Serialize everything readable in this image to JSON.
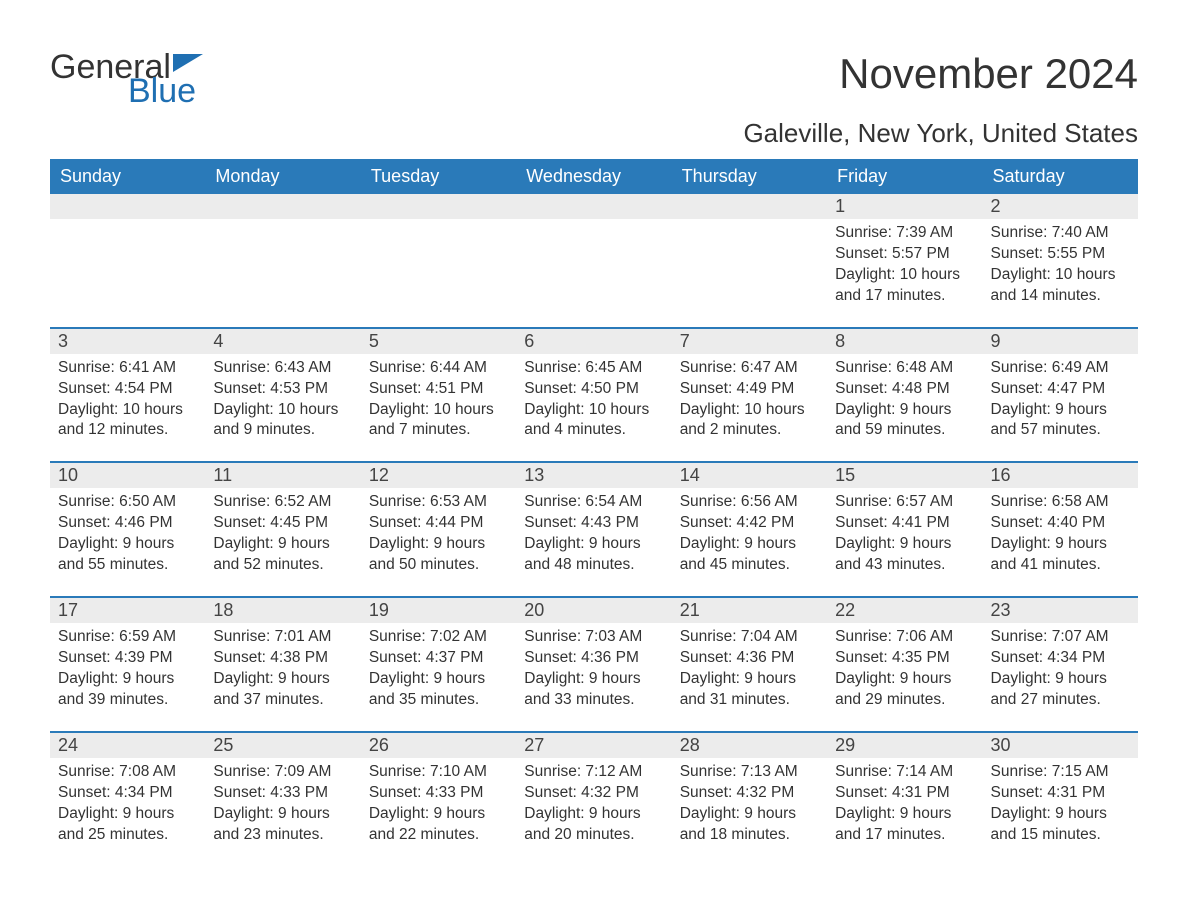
{
  "logo": {
    "word1": "General",
    "word2": "Blue",
    "icon_color": "#1f6fb2"
  },
  "colors": {
    "header_bg": "#2a7ab9",
    "header_text": "#ffffff",
    "daybar_bg": "#ececec",
    "border": "#2a7ab9",
    "text": "#333333",
    "logo_blue": "#1f6fb2",
    "page_bg": "#ffffff"
  },
  "title": "November 2024",
  "location": "Galeville, New York, United States",
  "weekdays": [
    "Sunday",
    "Monday",
    "Tuesday",
    "Wednesday",
    "Thursday",
    "Friday",
    "Saturday"
  ],
  "weeks": [
    [
      {
        "day": "",
        "sunrise": "",
        "sunset": "",
        "daylight": ""
      },
      {
        "day": "",
        "sunrise": "",
        "sunset": "",
        "daylight": ""
      },
      {
        "day": "",
        "sunrise": "",
        "sunset": "",
        "daylight": ""
      },
      {
        "day": "",
        "sunrise": "",
        "sunset": "",
        "daylight": ""
      },
      {
        "day": "",
        "sunrise": "",
        "sunset": "",
        "daylight": ""
      },
      {
        "day": "1",
        "sunrise": "Sunrise: 7:39 AM",
        "sunset": "Sunset: 5:57 PM",
        "daylight": "Daylight: 10 hours and 17 minutes."
      },
      {
        "day": "2",
        "sunrise": "Sunrise: 7:40 AM",
        "sunset": "Sunset: 5:55 PM",
        "daylight": "Daylight: 10 hours and 14 minutes."
      }
    ],
    [
      {
        "day": "3",
        "sunrise": "Sunrise: 6:41 AM",
        "sunset": "Sunset: 4:54 PM",
        "daylight": "Daylight: 10 hours and 12 minutes."
      },
      {
        "day": "4",
        "sunrise": "Sunrise: 6:43 AM",
        "sunset": "Sunset: 4:53 PM",
        "daylight": "Daylight: 10 hours and 9 minutes."
      },
      {
        "day": "5",
        "sunrise": "Sunrise: 6:44 AM",
        "sunset": "Sunset: 4:51 PM",
        "daylight": "Daylight: 10 hours and 7 minutes."
      },
      {
        "day": "6",
        "sunrise": "Sunrise: 6:45 AM",
        "sunset": "Sunset: 4:50 PM",
        "daylight": "Daylight: 10 hours and 4 minutes."
      },
      {
        "day": "7",
        "sunrise": "Sunrise: 6:47 AM",
        "sunset": "Sunset: 4:49 PM",
        "daylight": "Daylight: 10 hours and 2 minutes."
      },
      {
        "day": "8",
        "sunrise": "Sunrise: 6:48 AM",
        "sunset": "Sunset: 4:48 PM",
        "daylight": "Daylight: 9 hours and 59 minutes."
      },
      {
        "day": "9",
        "sunrise": "Sunrise: 6:49 AM",
        "sunset": "Sunset: 4:47 PM",
        "daylight": "Daylight: 9 hours and 57 minutes."
      }
    ],
    [
      {
        "day": "10",
        "sunrise": "Sunrise: 6:50 AM",
        "sunset": "Sunset: 4:46 PM",
        "daylight": "Daylight: 9 hours and 55 minutes."
      },
      {
        "day": "11",
        "sunrise": "Sunrise: 6:52 AM",
        "sunset": "Sunset: 4:45 PM",
        "daylight": "Daylight: 9 hours and 52 minutes."
      },
      {
        "day": "12",
        "sunrise": "Sunrise: 6:53 AM",
        "sunset": "Sunset: 4:44 PM",
        "daylight": "Daylight: 9 hours and 50 minutes."
      },
      {
        "day": "13",
        "sunrise": "Sunrise: 6:54 AM",
        "sunset": "Sunset: 4:43 PM",
        "daylight": "Daylight: 9 hours and 48 minutes."
      },
      {
        "day": "14",
        "sunrise": "Sunrise: 6:56 AM",
        "sunset": "Sunset: 4:42 PM",
        "daylight": "Daylight: 9 hours and 45 minutes."
      },
      {
        "day": "15",
        "sunrise": "Sunrise: 6:57 AM",
        "sunset": "Sunset: 4:41 PM",
        "daylight": "Daylight: 9 hours and 43 minutes."
      },
      {
        "day": "16",
        "sunrise": "Sunrise: 6:58 AM",
        "sunset": "Sunset: 4:40 PM",
        "daylight": "Daylight: 9 hours and 41 minutes."
      }
    ],
    [
      {
        "day": "17",
        "sunrise": "Sunrise: 6:59 AM",
        "sunset": "Sunset: 4:39 PM",
        "daylight": "Daylight: 9 hours and 39 minutes."
      },
      {
        "day": "18",
        "sunrise": "Sunrise: 7:01 AM",
        "sunset": "Sunset: 4:38 PM",
        "daylight": "Daylight: 9 hours and 37 minutes."
      },
      {
        "day": "19",
        "sunrise": "Sunrise: 7:02 AM",
        "sunset": "Sunset: 4:37 PM",
        "daylight": "Daylight: 9 hours and 35 minutes."
      },
      {
        "day": "20",
        "sunrise": "Sunrise: 7:03 AM",
        "sunset": "Sunset: 4:36 PM",
        "daylight": "Daylight: 9 hours and 33 minutes."
      },
      {
        "day": "21",
        "sunrise": "Sunrise: 7:04 AM",
        "sunset": "Sunset: 4:36 PM",
        "daylight": "Daylight: 9 hours and 31 minutes."
      },
      {
        "day": "22",
        "sunrise": "Sunrise: 7:06 AM",
        "sunset": "Sunset: 4:35 PM",
        "daylight": "Daylight: 9 hours and 29 minutes."
      },
      {
        "day": "23",
        "sunrise": "Sunrise: 7:07 AM",
        "sunset": "Sunset: 4:34 PM",
        "daylight": "Daylight: 9 hours and 27 minutes."
      }
    ],
    [
      {
        "day": "24",
        "sunrise": "Sunrise: 7:08 AM",
        "sunset": "Sunset: 4:34 PM",
        "daylight": "Daylight: 9 hours and 25 minutes."
      },
      {
        "day": "25",
        "sunrise": "Sunrise: 7:09 AM",
        "sunset": "Sunset: 4:33 PM",
        "daylight": "Daylight: 9 hours and 23 minutes."
      },
      {
        "day": "26",
        "sunrise": "Sunrise: 7:10 AM",
        "sunset": "Sunset: 4:33 PM",
        "daylight": "Daylight: 9 hours and 22 minutes."
      },
      {
        "day": "27",
        "sunrise": "Sunrise: 7:12 AM",
        "sunset": "Sunset: 4:32 PM",
        "daylight": "Daylight: 9 hours and 20 minutes."
      },
      {
        "day": "28",
        "sunrise": "Sunrise: 7:13 AM",
        "sunset": "Sunset: 4:32 PM",
        "daylight": "Daylight: 9 hours and 18 minutes."
      },
      {
        "day": "29",
        "sunrise": "Sunrise: 7:14 AM",
        "sunset": "Sunset: 4:31 PM",
        "daylight": "Daylight: 9 hours and 17 minutes."
      },
      {
        "day": "30",
        "sunrise": "Sunrise: 7:15 AM",
        "sunset": "Sunset: 4:31 PM",
        "daylight": "Daylight: 9 hours and 15 minutes."
      }
    ]
  ]
}
